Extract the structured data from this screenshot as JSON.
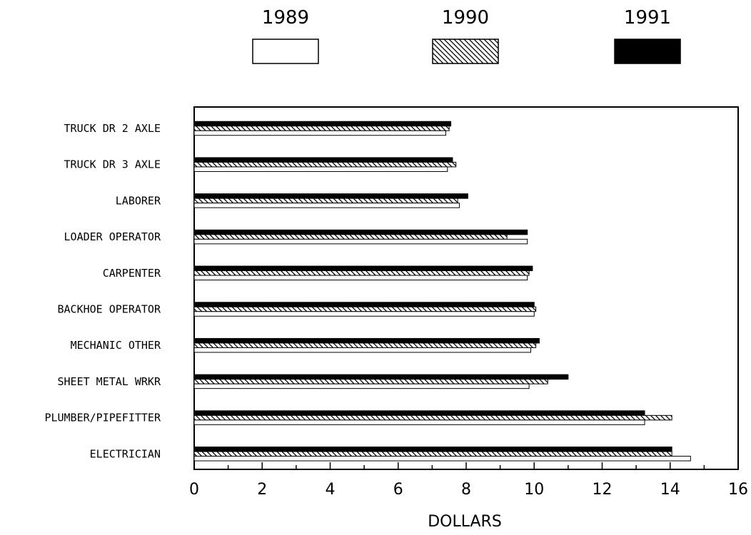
{
  "chart_data": {
    "type": "bar",
    "orientation": "horizontal",
    "title": "",
    "xlabel": "DOLLARS",
    "ylabel": "",
    "xlim": [
      0,
      16
    ],
    "xticks": [
      0,
      2,
      4,
      6,
      8,
      10,
      12,
      14,
      16
    ],
    "grid": false,
    "legend_position": "top",
    "categories": [
      "TRUCK DR 2 AXLE",
      "TRUCK DR 3 AXLE",
      "LABORER",
      "LOADER OPERATOR",
      "CARPENTER",
      "BACKHOE OPERATOR",
      "MECHANIC OTHER",
      "SHEET METAL WRKR",
      "PLUMBER/PIPEFITTER",
      "ELECTRICIAN"
    ],
    "series": [
      {
        "name": "1989",
        "fill": "#ffffff",
        "pattern": "none",
        "values": [
          7.4,
          7.45,
          7.8,
          9.8,
          9.8,
          10.0,
          9.9,
          9.85,
          13.25,
          14.6
        ]
      },
      {
        "name": "1990",
        "fill": "#ffffff",
        "pattern": "diagonal-hatch",
        "values": [
          7.5,
          7.7,
          7.75,
          9.2,
          9.85,
          10.05,
          10.05,
          10.4,
          14.05,
          14.05
        ]
      },
      {
        "name": "1991",
        "fill": "#000000",
        "pattern": "none",
        "values": [
          7.55,
          7.6,
          8.05,
          9.8,
          9.95,
          10.0,
          10.15,
          11.0,
          13.25,
          14.05
        ]
      }
    ]
  }
}
